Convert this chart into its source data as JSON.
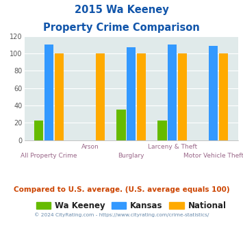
{
  "title_line1": "2015 Wa Keeney",
  "title_line2": "Property Crime Comparison",
  "categories": [
    "All Property Crime",
    "Arson",
    "Burglary",
    "Larceny & Theft",
    "Motor Vehicle Theft"
  ],
  "wa_keeney": [
    23,
    0,
    35,
    23,
    0
  ],
  "kansas": [
    110,
    0,
    107,
    110,
    109
  ],
  "national": [
    100,
    100,
    100,
    100,
    100
  ],
  "color_wa_keeney": "#66bb00",
  "color_kansas": "#3399ff",
  "color_national": "#ffaa00",
  "color_bg": "#e0eaea",
  "ylim": [
    0,
    120
  ],
  "yticks": [
    0,
    20,
    40,
    60,
    80,
    100,
    120
  ],
  "footer_text": "Compared to U.S. average. (U.S. average equals 100)",
  "copyright_text": "© 2024 CityRating.com - https://www.cityrating.com/crime-statistics/",
  "title_color": "#1155aa",
  "label_top_color": "#996688",
  "label_bot_color": "#996688",
  "footer_color": "#cc4400",
  "copyright_color": "#6688aa",
  "legend_labels": [
    "Wa Keeney",
    "Kansas",
    "National"
  ],
  "legend_text_color": "#222222"
}
